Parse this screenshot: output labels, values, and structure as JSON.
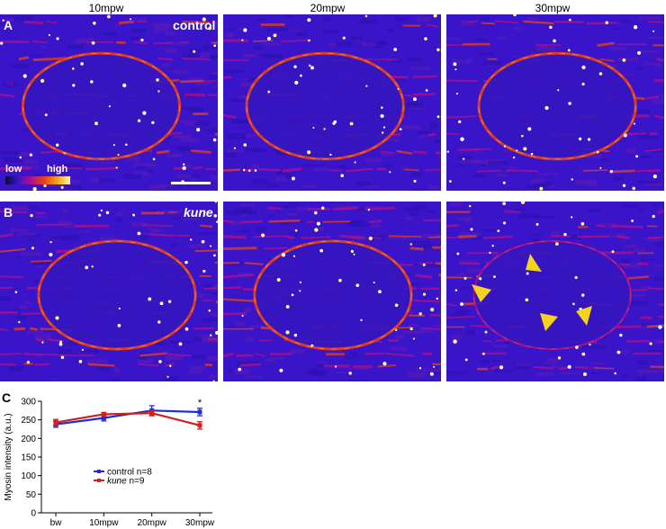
{
  "columns": [
    "10mpw",
    "20mpw",
    "30mpw"
  ],
  "rows": [
    {
      "label": "A",
      "condition": "control",
      "italic": false
    },
    {
      "label": "B",
      "condition": "kune",
      "italic": true
    }
  ],
  "lut": {
    "low": "low",
    "high": "high"
  },
  "colors": {
    "bg": "#3a14c8",
    "control": "#1f2fd6",
    "kune": "#d11f1f"
  },
  "chart_panel_label": "C",
  "chart_data": {
    "type": "line",
    "categories": [
      "bw",
      "10mpw",
      "20mpw",
      "30mpw"
    ],
    "series": [
      {
        "name": "control",
        "n_label": "n=8",
        "values": [
          238,
          255,
          275,
          271
        ],
        "errors": [
          8,
          8,
          13,
          10
        ],
        "color": "#1f2fd6"
      },
      {
        "name": "kune",
        "n_label": "n=9",
        "values": [
          243,
          265,
          268,
          235
        ],
        "errors": [
          8,
          5,
          7,
          10
        ],
        "color": "#d11f1f"
      }
    ],
    "ylabel": "Myosin intensity (a.u.)",
    "ylim": [
      0,
      300
    ],
    "yticks": [
      0,
      50,
      100,
      150,
      200,
      250,
      300
    ],
    "annotation": "*"
  }
}
